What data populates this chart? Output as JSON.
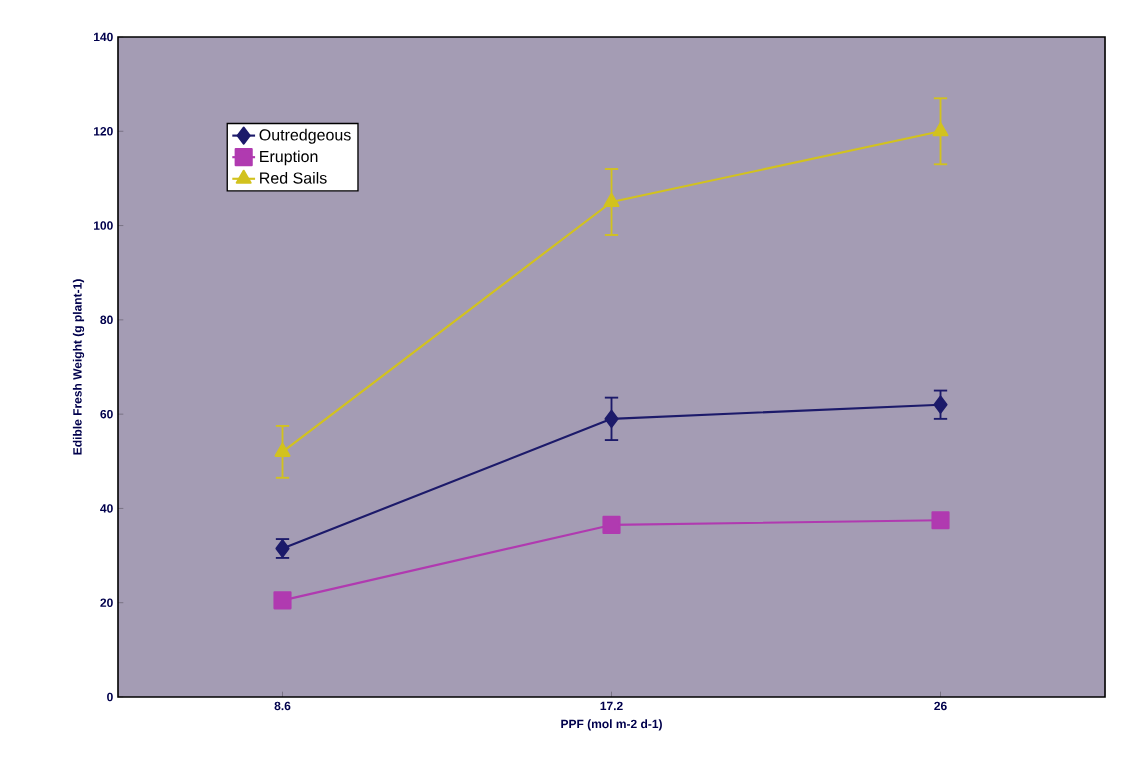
{
  "chart_data": {
    "type": "line",
    "xlabel": "PPF (mol m-2 d-1)",
    "ylabel": "Edible Fresh Weight (g plant-1)",
    "categories": [
      "8.6",
      "17.2",
      "26"
    ],
    "series": [
      {
        "name": "Outredgeous",
        "color": "#1c1a6a",
        "marker": "diamond",
        "values": [
          31.5,
          59,
          62
        ],
        "errors": [
          2,
          4.5,
          3
        ]
      },
      {
        "name": "Eruption",
        "color": "#b03ab0",
        "marker": "square",
        "values": [
          20.5,
          36.5,
          37.5
        ]
      },
      {
        "name": "Red Sails",
        "color": "#d2c21e",
        "marker": "triangle",
        "values": [
          52,
          105,
          120
        ],
        "errors": [
          5.5,
          7,
          7
        ]
      }
    ],
    "ylim": [
      0,
      140
    ],
    "yticks": [
      0,
      20,
      40,
      60,
      80,
      100,
      120,
      140
    ],
    "grid": false,
    "legend": "top left"
  }
}
